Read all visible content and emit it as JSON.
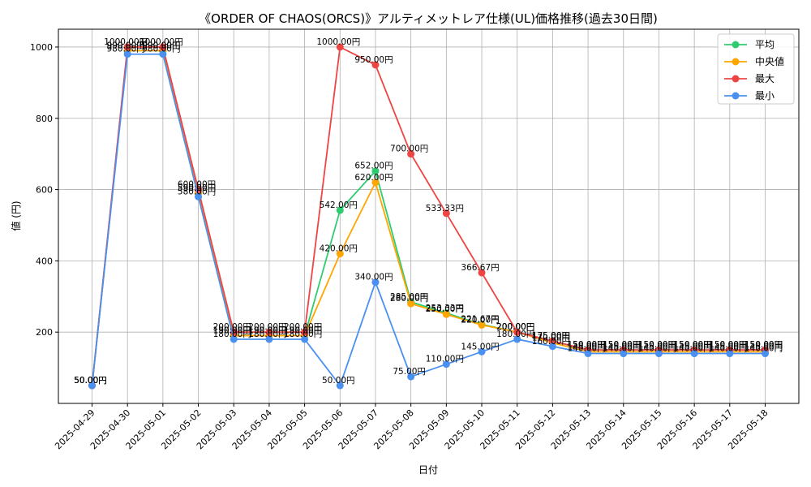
{
  "chart_data": {
    "type": "line",
    "title": "《ORDER OF CHAOS(ORCS)》アルティメットレア仕様(UL)価格推移(過去30日間)",
    "xlabel": "日付",
    "ylabel": "値 (円)",
    "ylim": [
      0,
      1050
    ],
    "yticks": [
      200,
      400,
      600,
      800,
      1000
    ],
    "grid": true,
    "legend_position": "top-right",
    "value_suffix": "円",
    "categories": [
      "2025-04-29",
      "2025-04-30",
      "2025-05-01",
      "2025-05-02",
      "2025-05-03",
      "2025-05-04",
      "2025-05-05",
      "2025-05-06",
      "2025-05-07",
      "2025-05-08",
      "2025-05-09",
      "2025-05-10",
      "2025-05-11",
      "2025-05-12",
      "2025-05-13",
      "2025-05-14",
      "2025-05-15",
      "2025-05-16",
      "2025-05-17",
      "2025-05-18"
    ],
    "series": [
      {
        "name": "平均",
        "color": "#2ecc71",
        "values": [
          50,
          990,
          990,
          590,
          190,
          190,
          190,
          542,
          652,
          285,
          253.33,
          221.67,
          200,
          175,
          150,
          150,
          150,
          150,
          150,
          150
        ]
      },
      {
        "name": "中央値",
        "color": "#ffa500",
        "values": [
          50,
          990,
          990,
          590,
          190,
          190,
          190,
          420,
          620,
          280,
          250,
          220,
          200,
          170,
          145,
          145,
          145,
          145,
          145,
          145
        ]
      },
      {
        "name": "最大",
        "color": "#ef4444",
        "values": [
          50,
          1000,
          1000,
          600,
          200,
          200,
          200,
          1000,
          950,
          700,
          533.33,
          366.67,
          200,
          175,
          150,
          150,
          150,
          150,
          150,
          150
        ]
      },
      {
        "name": "最小",
        "color": "#4a90f0",
        "values": [
          50,
          980,
          980,
          580,
          180,
          180,
          180,
          50,
          340,
          75,
          110,
          145,
          180,
          160,
          140,
          140,
          140,
          140,
          140,
          140
        ]
      }
    ]
  }
}
